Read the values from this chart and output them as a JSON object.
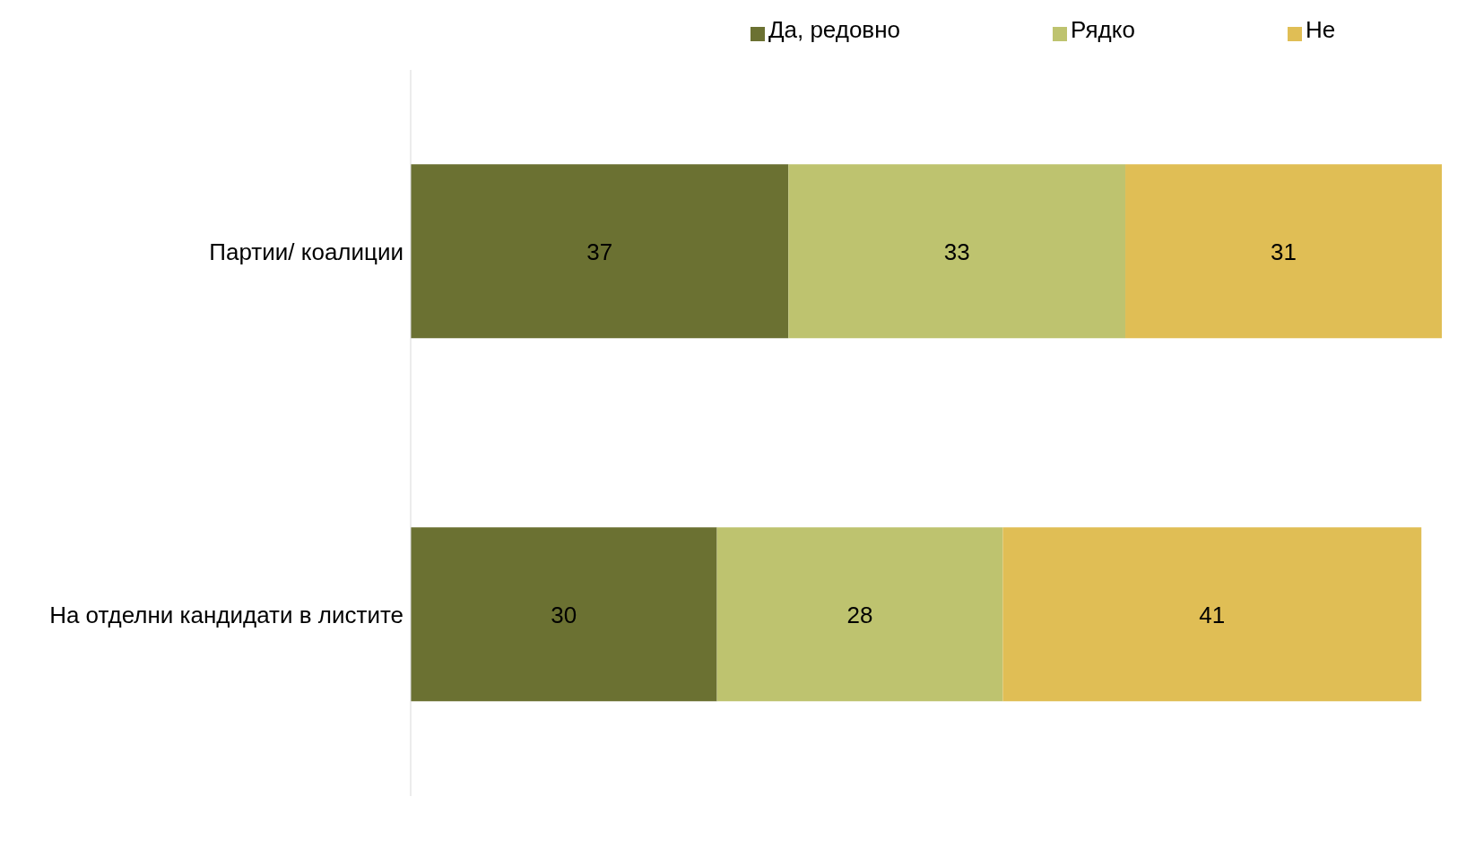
{
  "chart_data": {
    "type": "bar",
    "orientation": "horizontal",
    "stacked": true,
    "categories": [
      "Партии/ коалиции",
      "На отделни кандидати в листите"
    ],
    "series": [
      {
        "name": "Да, редовно",
        "color": "#6b7132",
        "values": [
          37,
          30
        ]
      },
      {
        "name": "Рядко",
        "color": "#bec36f",
        "values": [
          33,
          28
        ]
      },
      {
        "name": "Не",
        "color": "#e0be55",
        "values": [
          31,
          41
        ]
      }
    ],
    "xlim": [
      0,
      101
    ],
    "data_labels": true,
    "legend": "top"
  }
}
